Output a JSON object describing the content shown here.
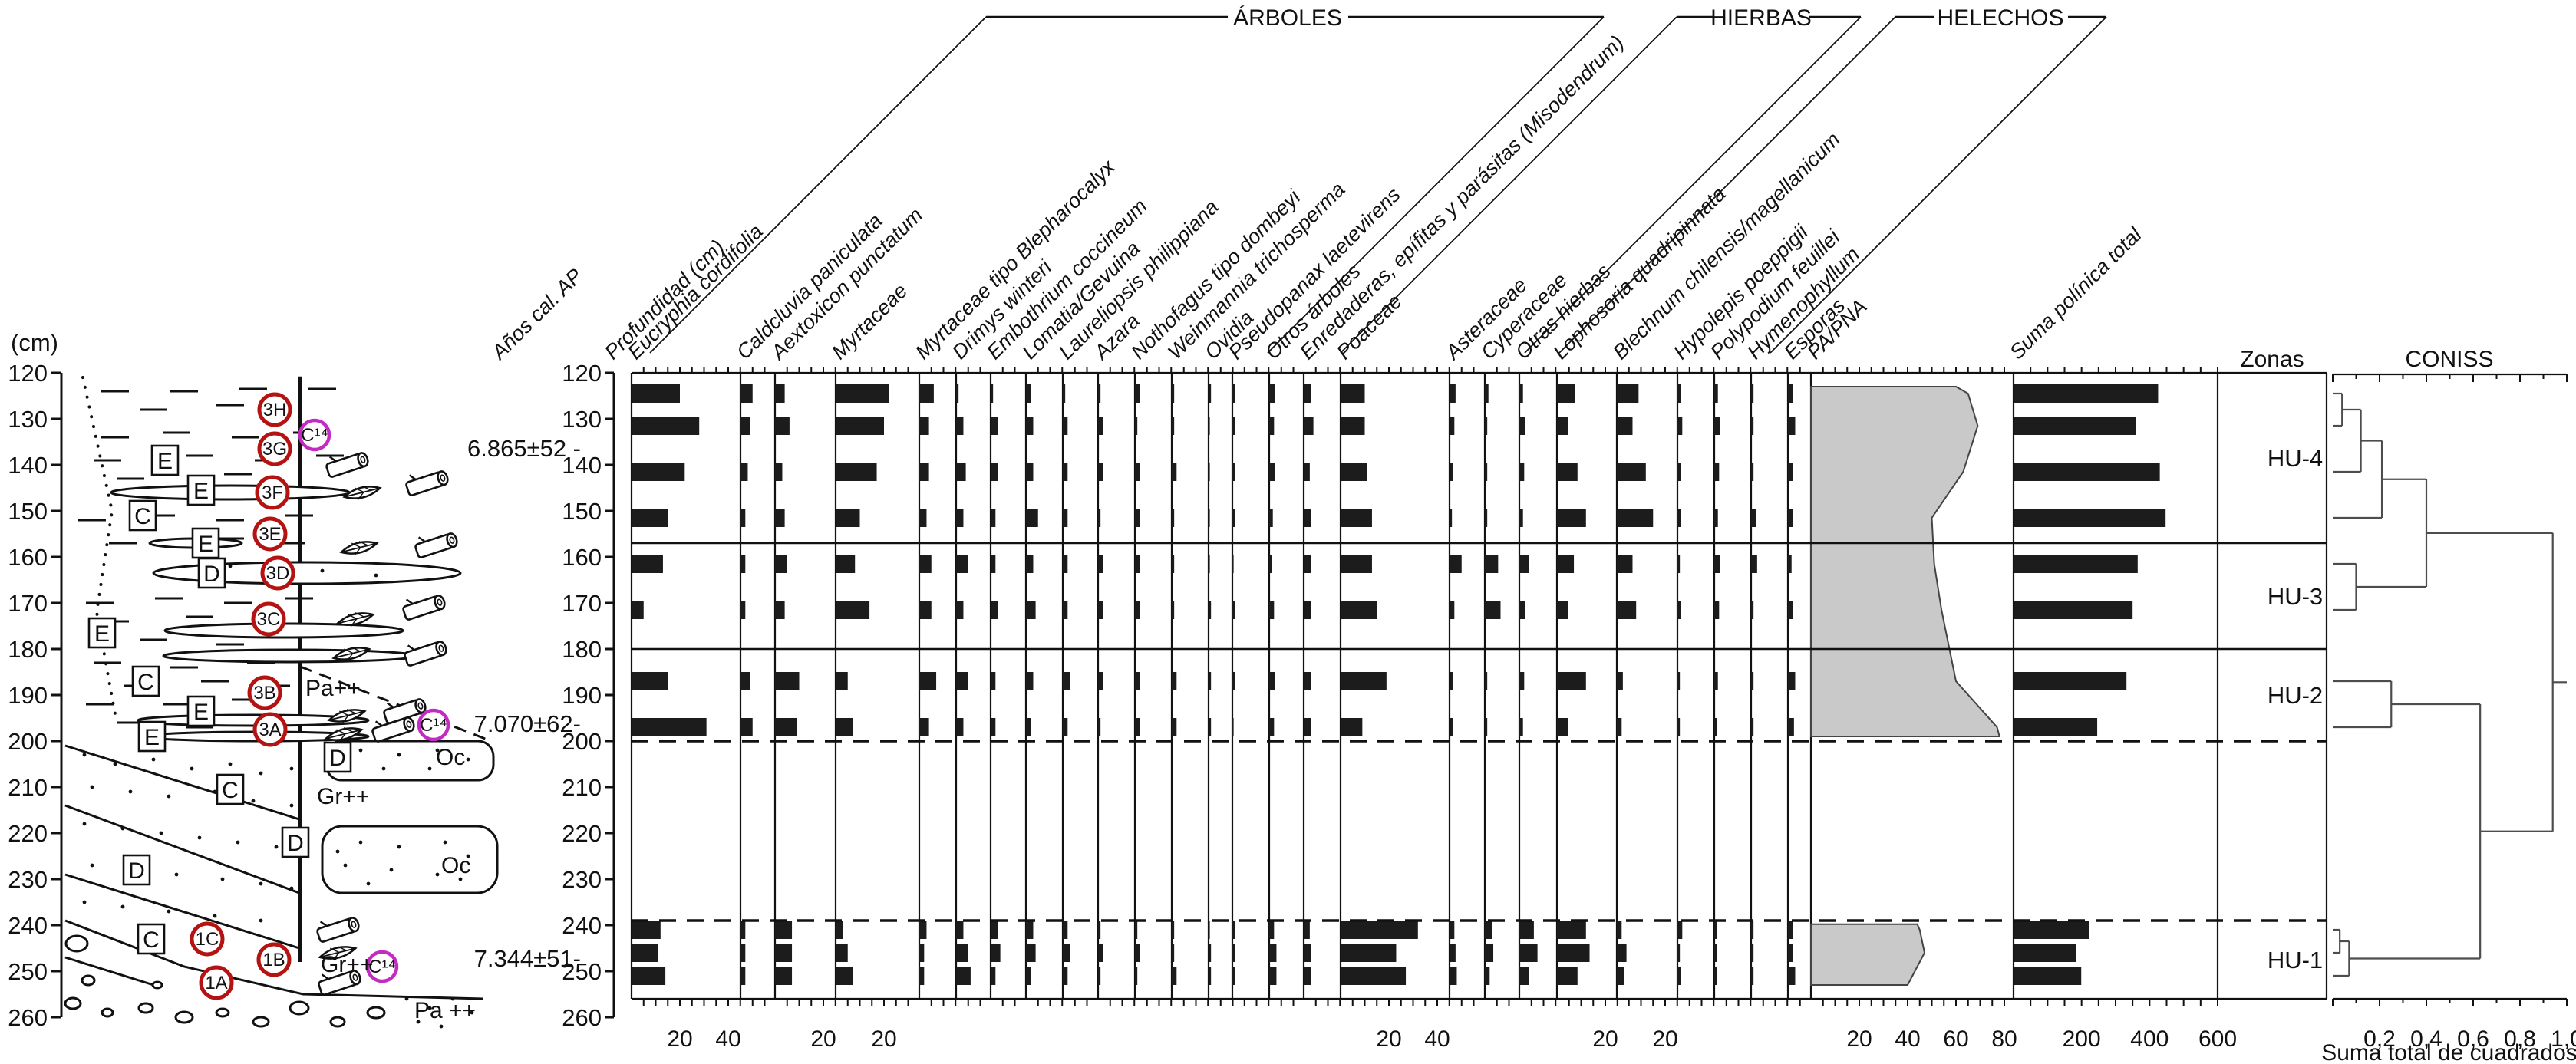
{
  "labels": {
    "cm_unit": "(cm)",
    "age_axis": "Años cal. AP",
    "depth_axis": "Profundidad (cm)",
    "group_arboles": "ÁRBOLES",
    "group_hierbas": "HIERBAS",
    "group_helechos": "HELECHOS",
    "zonas_header": "Zonas",
    "coniss_header": "CONISS",
    "coniss_xlabel": "Suma total de cuadrados"
  },
  "lithology": {
    "depth_scale_cm": {
      "min": 120,
      "max": 260,
      "step": 10
    },
    "unit_letters": [
      {
        "label": "E",
        "x": 215,
        "depth_cm": 139
      },
      {
        "label": "E",
        "x": 262,
        "depth_cm": 145.5
      },
      {
        "label": "C",
        "x": 186,
        "depth_cm": 151
      },
      {
        "label": "E",
        "x": 268,
        "depth_cm": 157
      },
      {
        "label": "D",
        "x": 276,
        "depth_cm": 163.5
      },
      {
        "label": "E",
        "x": 133,
        "depth_cm": 176.5
      },
      {
        "label": "C",
        "x": 190,
        "depth_cm": 187
      },
      {
        "label": "E",
        "x": 262,
        "depth_cm": 193.5
      },
      {
        "label": "E",
        "x": 198,
        "depth_cm": 199
      },
      {
        "label": "D",
        "x": 440,
        "depth_cm": 203.5
      },
      {
        "label": "C",
        "x": 300,
        "depth_cm": 210.5
      },
      {
        "label": "D",
        "x": 385,
        "depth_cm": 222
      },
      {
        "label": "D",
        "x": 178,
        "depth_cm": 228
      },
      {
        "label": "C",
        "x": 197,
        "depth_cm": 243
      }
    ],
    "sample_labels": [
      {
        "label": "3H",
        "x": 358,
        "depth_cm": 128
      },
      {
        "label": "3G",
        "x": 358,
        "depth_cm": 136.5
      },
      {
        "label": "3F",
        "x": 355,
        "depth_cm": 146
      },
      {
        "label": "3E",
        "x": 352,
        "depth_cm": 155
      },
      {
        "label": "3D",
        "x": 362,
        "depth_cm": 163.5
      },
      {
        "label": "3C",
        "x": 350,
        "depth_cm": 173.5
      },
      {
        "label": "3B",
        "x": 345,
        "depth_cm": 189.5
      },
      {
        "label": "3A",
        "x": 352,
        "depth_cm": 197.5
      },
      {
        "label": "1C",
        "x": 270,
        "depth_cm": 243
      },
      {
        "label": "1B",
        "x": 357,
        "depth_cm": 247.5
      },
      {
        "label": "1A",
        "x": 282,
        "depth_cm": 252.5
      }
    ],
    "c14_labels": [
      {
        "label": "C¹⁴",
        "x": 410,
        "depth_cm": 133.5
      },
      {
        "label": "C¹⁴",
        "x": 565,
        "depth_cm": 196.5
      },
      {
        "label": "C¹⁴",
        "x": 498,
        "depth_cm": 249
      }
    ],
    "texture_labels": [
      {
        "label": "Pa++",
        "x": 398,
        "depth_cm": 188.5
      },
      {
        "label": "Oc",
        "x": 568,
        "depth_cm": 203.5
      },
      {
        "label": "Gr++",
        "x": 413,
        "depth_cm": 212
      },
      {
        "label": "Oc",
        "x": 575,
        "depth_cm": 227
      },
      {
        "label": "Gr++",
        "x": 418,
        "depth_cm": 248.5
      },
      {
        "label": "Pa ++",
        "x": 540,
        "depth_cm": 258.5
      }
    ],
    "colors": {
      "sample_circle": "#b51212",
      "c14_circle": "#c32cc3",
      "ink": "#111111"
    }
  },
  "chart_data": {
    "type": "bar",
    "variant": "pollen-percentage-diagram",
    "depth_axis": {
      "min": 120,
      "max": 260,
      "tick_step": 10
    },
    "sample_depths_cm": [
      124.5,
      131.5,
      141.5,
      151.5,
      161.5,
      171.5,
      187,
      197,
      241,
      246,
      251
    ],
    "ages": [
      {
        "label": "6.865±52 -",
        "depth_cm": 136.5
      },
      {
        "label": "7.070±62-",
        "depth_cm": 196.3
      },
      {
        "label": "7.344±51-",
        "depth_cm": 247.3
      }
    ],
    "series": [
      {
        "name": "Eucryphia cordifolia",
        "group": "ÁRBOLES",
        "style": "bar",
        "axis_max": 45,
        "tick_labels": [
          20,
          40
        ],
        "values": [
          20,
          28,
          22,
          15,
          13,
          5,
          15,
          31,
          12,
          11,
          14
        ]
      },
      {
        "name": "Caldcluvia paniculata",
        "group": "ÁRBOLES",
        "style": "bar",
        "axis_max": 14,
        "tick_labels": [],
        "values": [
          5,
          4,
          3,
          2,
          2,
          2,
          4,
          5,
          2,
          2,
          2
        ]
      },
      {
        "name": "Aextoxicon punctatum",
        "group": "ÁRBOLES",
        "style": "bar",
        "axis_max": 25,
        "tick_labels": [
          20
        ],
        "values": [
          4,
          6,
          3,
          4,
          5,
          4,
          10,
          9,
          7,
          7,
          7
        ]
      },
      {
        "name": "Myrtaceae",
        "group": "ÁRBOLES",
        "style": "bar",
        "axis_max": 34,
        "tick_labels": [
          20
        ],
        "values": [
          22,
          20,
          17,
          10,
          8,
          14,
          5,
          7,
          3,
          5,
          7
        ]
      },
      {
        "name": "Myrtaceae tipo Blepharocalyx",
        "group": "ÁRBOLES",
        "style": "bar",
        "axis_max": 15,
        "tick_labels": [],
        "values": [
          6,
          4,
          4,
          3,
          5,
          5,
          7,
          4,
          3,
          2,
          2
        ]
      },
      {
        "name": "Drimys winteri",
        "group": "ÁRBOLES",
        "style": "bar",
        "axis_max": 14,
        "tick_labels": [],
        "values": [
          1,
          3,
          4,
          3,
          5,
          3,
          5,
          3,
          3,
          5,
          6
        ]
      },
      {
        "name": "Embothrium coccineum",
        "group": "ÁRBOLES",
        "style": "bar",
        "axis_max": 14,
        "tick_labels": [],
        "values": [
          1,
          3,
          3,
          2,
          2,
          3,
          2,
          2,
          3,
          4,
          2
        ]
      },
      {
        "name": "Lomatia/Gevuina",
        "group": "ÁRBOLES",
        "style": "bar",
        "axis_max": 15,
        "tick_labels": [],
        "values": [
          2,
          3,
          3,
          5,
          3,
          4,
          3,
          2,
          3,
          4,
          2
        ]
      },
      {
        "name": "Laureliopsis philippiana",
        "group": "ÁRBOLES",
        "style": "bar",
        "axis_max": 14,
        "tick_labels": [],
        "values": [
          1,
          2,
          2,
          2,
          2,
          2,
          3,
          2,
          2,
          3,
          2
        ]
      },
      {
        "name": "Azara",
        "group": "ÁRBOLES",
        "style": "bar",
        "axis_max": 15,
        "tick_labels": [],
        "values": [
          1,
          2,
          2,
          1,
          2,
          2,
          2,
          1,
          1,
          2,
          1
        ]
      },
      {
        "name": "Nothofagus tipo dombeyi",
        "group": "ÁRBOLES",
        "style": "bar",
        "axis_max": 15,
        "tick_labels": [],
        "values": [
          2,
          1,
          2,
          2,
          2,
          2,
          2,
          2,
          1,
          2,
          1
        ]
      },
      {
        "name": "Weinmannia trichosperma",
        "group": "ÁRBOLES",
        "style": "bar",
        "axis_max": 15,
        "tick_labels": [],
        "values": [
          1,
          1,
          2,
          1,
          1,
          1,
          2,
          2,
          1,
          1,
          2
        ]
      },
      {
        "name": "Ovidia",
        "group": "ÁRBOLES",
        "style": "bar",
        "axis_max": 10,
        "tick_labels": [],
        "values": [
          1,
          0.5,
          0.5,
          0.5,
          0.5,
          1,
          1,
          1,
          0.5,
          1,
          1
        ]
      },
      {
        "name": "Pseudopanax laetevirens",
        "group": "ÁRBOLES",
        "style": "bar",
        "axis_max": 15,
        "tick_labels": [],
        "values": [
          1,
          1,
          1,
          1,
          0.5,
          1,
          1,
          0.5,
          1,
          1,
          1
        ]
      },
      {
        "name": "Otros árboles",
        "group": "ÁRBOLES",
        "style": "bar",
        "axis_max": 14,
        "tick_labels": [],
        "values": [
          2.5,
          2,
          2.5,
          1.5,
          1,
          2,
          2.5,
          2,
          2,
          3,
          3
        ]
      },
      {
        "name": "Enredaderas, epífitas y parásitas (Misodendrum)",
        "group": "ÁRBOLES",
        "style": "bar",
        "axis_max": 15,
        "tick_labels": [],
        "values": [
          3,
          4,
          2.5,
          3,
          3,
          3,
          3,
          3,
          2.5,
          3,
          3
        ]
      },
      {
        "name": "Poaceae",
        "group": "HIERBAS",
        "style": "bar",
        "axis_max": 45,
        "tick_labels": [
          20,
          40
        ],
        "values": [
          10,
          10,
          11,
          13,
          13,
          15,
          19,
          9,
          32,
          23,
          27
        ]
      },
      {
        "name": "Asteraceae",
        "group": "HIERBAS",
        "style": "bar",
        "axis_max": 15,
        "tick_labels": [],
        "values": [
          2.5,
          2,
          1.5,
          1,
          5,
          2,
          1.5,
          1.5,
          2,
          2.5,
          3
        ]
      },
      {
        "name": "Cyperaceae",
        "group": "HIERBAS",
        "style": "bar",
        "axis_max": 14,
        "tick_labels": [],
        "values": [
          1.5,
          1,
          1,
          1,
          5.5,
          6.5,
          1,
          1,
          3,
          3.5,
          2
        ]
      },
      {
        "name": "Otras hierbas",
        "group": "HIERBAS",
        "style": "bar",
        "axis_max": 16,
        "tick_labels": [],
        "values": [
          1.5,
          2.5,
          2,
          1.5,
          4,
          2.5,
          2,
          1.5,
          6,
          7.5,
          4
        ]
      },
      {
        "name": "Lophosoria quadripinnata",
        "group": "HELECHOS",
        "style": "bar",
        "axis_max": 25,
        "tick_labels": [
          20
        ],
        "values": [
          7.5,
          4.5,
          8.5,
          12,
          7,
          4.5,
          12,
          4.5,
          12,
          13.5,
          8.5
        ]
      },
      {
        "name": "Blechnum chilensis/magellanicum",
        "group": "HELECHOS",
        "style": "bar",
        "axis_max": 25,
        "tick_labels": [
          20
        ],
        "values": [
          9,
          6.5,
          12,
          15,
          6.5,
          8,
          2.5,
          2,
          2,
          4,
          3
        ]
      },
      {
        "name": "Hypolepis poeppigii",
        "group": "HELECHOS",
        "style": "bar",
        "axis_max": 15,
        "tick_labels": [],
        "values": [
          1.5,
          2,
          1.5,
          1.5,
          1,
          1.5,
          1,
          1,
          2,
          1,
          1.5
        ]
      },
      {
        "name": "Polypodium feuillei",
        "group": "HELECHOS",
        "style": "bar",
        "axis_max": 15,
        "tick_labels": [],
        "values": [
          1.5,
          2.5,
          2,
          1.5,
          2.5,
          2,
          1.5,
          1,
          1,
          1,
          1
        ]
      },
      {
        "name": "Hymenophyllum",
        "group": "HELECHOS",
        "style": "bar",
        "axis_max": 15,
        "tick_labels": [],
        "values": [
          1,
          1,
          1,
          2,
          2.5,
          1,
          1,
          1,
          1,
          1,
          1
        ]
      },
      {
        "name": "Esporas",
        "group": "HELECHOS",
        "style": "bar",
        "axis_max": 10,
        "tick_labels": [],
        "values": [
          2,
          3,
          2,
          2,
          1.5,
          2,
          3,
          2.5,
          2,
          2,
          3
        ]
      },
      {
        "name": "PA/PNA",
        "group": "",
        "style": "silhouette",
        "axis_max": 84,
        "tick_labels": [
          20,
          40,
          60,
          80
        ],
        "values": [
          65,
          69,
          63,
          50,
          51,
          54,
          60,
          77,
          45,
          47,
          42
        ]
      },
      {
        "name": "Suma polínica total",
        "group": "",
        "style": "bar",
        "axis_max": 600,
        "tick_labels": [
          200,
          400,
          600
        ],
        "values": [
          425,
          360,
          430,
          447,
          365,
          350,
          332,
          246,
          223,
          183,
          199
        ]
      }
    ],
    "zones": [
      {
        "label": "HU-4",
        "from_cm": 120,
        "to_cm": 157,
        "label_depth_cm": 138.5
      },
      {
        "label": "HU-3",
        "from_cm": 157,
        "to_cm": 180,
        "label_depth_cm": 168.5
      },
      {
        "label": "HU-2",
        "from_cm": 180,
        "to_cm": 200,
        "label_depth_cm": 190
      },
      {
        "label": "HU-1",
        "from_cm": 239,
        "to_cm": 256,
        "label_depth_cm": 247.5
      }
    ],
    "zone_boundaries_solid_cm": [
      157,
      180
    ],
    "zone_boundaries_dashed_cm": [
      200,
      239
    ],
    "no_data_interval_cm": [
      200,
      239
    ],
    "coniss": {
      "axis_ticks": [
        "0,2",
        "0,4",
        "0,6",
        "0,8",
        "1,0"
      ],
      "axis_range": [
        0,
        1.0
      ],
      "leaf_depths_cm": [
        124.5,
        131.5,
        141.5,
        151.5,
        161.5,
        171.5,
        187,
        197,
        241,
        246,
        251
      ],
      "merges": [
        [
          "L0",
          "L1",
          0.04
        ],
        [
          "M0",
          "L2",
          0.12
        ],
        [
          "M1",
          "L3",
          0.21
        ],
        [
          "L4",
          "L5",
          0.1
        ],
        [
          "M2",
          "M3",
          0.4
        ],
        [
          "L6",
          "L7",
          0.25
        ],
        [
          "L8",
          "L9",
          0.03
        ],
        [
          "M6",
          "L10",
          0.07
        ],
        [
          "M5",
          "M7",
          0.63
        ],
        [
          "M4",
          "M8",
          0.94
        ]
      ]
    }
  }
}
